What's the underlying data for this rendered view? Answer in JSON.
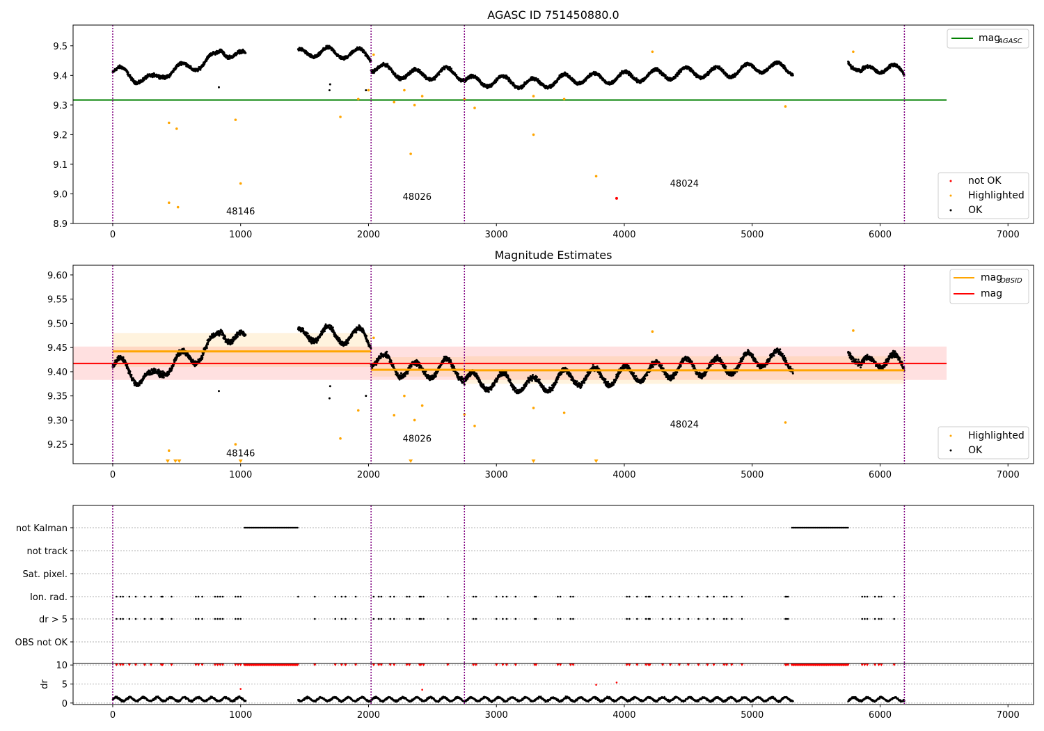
{
  "figure_title": "AGASC ID 751450880.0",
  "colors": {
    "ok": "#000000",
    "highlighted": "#ffa500",
    "not_ok": "#ff0000",
    "agasc_line": "#008000",
    "mag_line": "#ff0000",
    "obsid_line": "#ffa500",
    "obsid_boundary": "#800080",
    "grid": "#b0b0b0"
  },
  "chart_data": [
    {
      "id": "top",
      "type": "scatter",
      "title": "AGASC ID 751450880.0",
      "xlim": [
        -310,
        7200
      ],
      "ylim": [
        8.9,
        9.57
      ],
      "xticks": [
        0,
        1000,
        2000,
        3000,
        4000,
        5000,
        6000,
        7000
      ],
      "yticks": [
        "8.9",
        "9.0",
        "9.1",
        "9.2",
        "9.3",
        "9.4",
        "9.5"
      ],
      "obsid_boundaries": [
        0,
        2020,
        2750,
        6190
      ],
      "obsid_labels": [
        {
          "text": "48146",
          "x": 1000,
          "y": 8.93
        },
        {
          "text": "48026",
          "x": 2380,
          "y": 8.98
        },
        {
          "text": "48024",
          "x": 4470,
          "y": 9.025
        }
      ],
      "mag_agasc": {
        "value": 9.317,
        "x_range": [
          -310,
          6520
        ]
      },
      "ok_series": [
        {
          "x_start": 0,
          "x_end": 1040,
          "points": [
            [
              0,
              9.41
            ],
            [
              100,
              9.41
            ],
            [
              200,
              9.39
            ],
            [
              300,
              9.38
            ],
            [
              400,
              9.41
            ],
            [
              500,
              9.42
            ],
            [
              600,
              9.43
            ],
            [
              700,
              9.44
            ],
            [
              800,
              9.46
            ],
            [
              850,
              9.49
            ],
            [
              900,
              9.48
            ],
            [
              950,
              9.47
            ],
            [
              1040,
              9.46
            ]
          ]
        },
        {
          "x_start": 1450,
          "x_end": 2020,
          "points": [
            [
              1450,
              9.47
            ],
            [
              1550,
              9.48
            ],
            [
              1650,
              9.48
            ],
            [
              1750,
              9.47
            ],
            [
              1850,
              9.48
            ],
            [
              1950,
              9.47
            ],
            [
              2020,
              9.46
            ]
          ]
        },
        {
          "x_start": 2020,
          "x_end": 2750,
          "points": [
            [
              2020,
              9.43
            ],
            [
              2200,
              9.41
            ],
            [
              2400,
              9.4
            ],
            [
              2600,
              9.41
            ],
            [
              2750,
              9.4
            ]
          ]
        },
        {
          "x_start": 2750,
          "x_end": 5320,
          "points": [
            [
              2750,
              9.38
            ],
            [
              3100,
              9.38
            ],
            [
              3300,
              9.37
            ],
            [
              3600,
              9.39
            ],
            [
              3900,
              9.39
            ],
            [
              4200,
              9.4
            ],
            [
              4500,
              9.41
            ],
            [
              4800,
              9.41
            ],
            [
              5100,
              9.43
            ],
            [
              5320,
              9.42
            ]
          ]
        },
        {
          "x_start": 5750,
          "x_end": 6190,
          "points": [
            [
              5750,
              9.46
            ],
            [
              5850,
              9.4
            ],
            [
              5950,
              9.43
            ],
            [
              6100,
              9.42
            ],
            [
              6190,
              9.41
            ]
          ]
        }
      ],
      "ok_outliers": [
        [
          830,
          9.36
        ],
        [
          1700,
          9.37
        ],
        [
          1695,
          9.35
        ],
        [
          1980,
          9.35
        ]
      ],
      "highlighted": [
        [
          440,
          9.24
        ],
        [
          500,
          9.22
        ],
        [
          440,
          8.97
        ],
        [
          510,
          8.955
        ],
        [
          960,
          9.25
        ],
        [
          1000,
          9.035
        ],
        [
          1780,
          9.26
        ],
        [
          1920,
          9.32
        ],
        [
          2000,
          9.35
        ],
        [
          2040,
          9.47
        ],
        [
          2200,
          9.31
        ],
        [
          2280,
          9.35
        ],
        [
          2330,
          9.135
        ],
        [
          2360,
          9.3
        ],
        [
          2420,
          9.33
        ],
        [
          2750,
          9.32
        ],
        [
          2830,
          9.29
        ],
        [
          3290,
          9.2
        ],
        [
          3290,
          9.33
        ],
        [
          3530,
          9.32
        ],
        [
          3780,
          9.06
        ],
        [
          4220,
          9.48
        ],
        [
          5260,
          9.295
        ],
        [
          5790,
          9.48
        ]
      ],
      "not_ok": [
        [
          3940,
          8.985
        ]
      ],
      "legend_lines": [
        {
          "label": "mag",
          "sub": "AGASC"
        }
      ],
      "legend_markers": [
        "not OK",
        "Highlighted",
        "OK"
      ]
    },
    {
      "id": "middle",
      "type": "scatter",
      "title": "Magnitude Estimates",
      "xlim": [
        -310,
        7200
      ],
      "ylim": [
        9.21,
        9.62
      ],
      "xticks": [
        0,
        1000,
        2000,
        3000,
        4000,
        5000,
        6000,
        7000
      ],
      "yticks": [
        "9.25",
        "9.30",
        "9.35",
        "9.40",
        "9.45",
        "9.50",
        "9.55",
        "9.60"
      ],
      "obsid_boundaries": [
        0,
        2020,
        2750,
        6190
      ],
      "obsid_labels": [
        {
          "text": "48146",
          "x": 1000,
          "y": 9.225
        },
        {
          "text": "48026",
          "x": 2380,
          "y": 9.255
        },
        {
          "text": "48024",
          "x": 4470,
          "y": 9.285
        }
      ],
      "mag": {
        "value": 9.417,
        "band": [
          9.383,
          9.452
        ],
        "x_range": [
          -310,
          6520
        ]
      },
      "mag_obsid": [
        {
          "x_range": [
            0,
            2020
          ],
          "value": 9.442,
          "band": [
            9.41,
            9.48
          ]
        },
        {
          "x_range": [
            2020,
            2750
          ],
          "value": 9.404,
          "band": [
            9.39,
            9.43
          ]
        },
        {
          "x_range": [
            2750,
            6190
          ],
          "value": 9.403,
          "band": [
            9.375,
            9.432
          ]
        }
      ],
      "ok_series": [
        {
          "x_start": 0,
          "x_end": 1040,
          "points": [
            [
              0,
              9.41
            ],
            [
              100,
              9.41
            ],
            [
              200,
              9.39
            ],
            [
              300,
              9.38
            ],
            [
              400,
              9.41
            ],
            [
              500,
              9.42
            ],
            [
              600,
              9.43
            ],
            [
              700,
              9.44
            ],
            [
              800,
              9.46
            ],
            [
              850,
              9.49
            ],
            [
              900,
              9.48
            ],
            [
              950,
              9.47
            ],
            [
              1040,
              9.46
            ]
          ]
        },
        {
          "x_start": 1450,
          "x_end": 2020,
          "points": [
            [
              1450,
              9.47
            ],
            [
              1550,
              9.48
            ],
            [
              1650,
              9.48
            ],
            [
              1750,
              9.47
            ],
            [
              1850,
              9.48
            ],
            [
              1950,
              9.47
            ],
            [
              2020,
              9.46
            ]
          ]
        },
        {
          "x_start": 2020,
          "x_end": 2750,
          "points": [
            [
              2020,
              9.43
            ],
            [
              2200,
              9.41
            ],
            [
              2400,
              9.4
            ],
            [
              2600,
              9.41
            ],
            [
              2750,
              9.4
            ]
          ]
        },
        {
          "x_start": 2750,
          "x_end": 5320,
          "points": [
            [
              2750,
              9.38
            ],
            [
              3100,
              9.38
            ],
            [
              3300,
              9.37
            ],
            [
              3600,
              9.39
            ],
            [
              3900,
              9.39
            ],
            [
              4200,
              9.4
            ],
            [
              4500,
              9.41
            ],
            [
              4800,
              9.41
            ],
            [
              5100,
              9.43
            ],
            [
              5320,
              9.42
            ]
          ]
        },
        {
          "x_start": 5750,
          "x_end": 6190,
          "points": [
            [
              5750,
              9.46
            ],
            [
              5850,
              9.4
            ],
            [
              5950,
              9.43
            ],
            [
              6100,
              9.42
            ],
            [
              6190,
              9.41
            ]
          ]
        }
      ],
      "ok_outliers": [
        [
          830,
          9.36
        ],
        [
          1700,
          9.37
        ],
        [
          1695,
          9.345
        ],
        [
          1980,
          9.35
        ]
      ],
      "highlighted": [
        [
          440,
          9.237
        ],
        [
          960,
          9.25
        ],
        [
          1780,
          9.262
        ],
        [
          1920,
          9.32
        ],
        [
          2040,
          9.47
        ],
        [
          2200,
          9.31
        ],
        [
          2280,
          9.35
        ],
        [
          2360,
          9.3
        ],
        [
          2420,
          9.33
        ],
        [
          2750,
          9.312
        ],
        [
          2830,
          9.288
        ],
        [
          3290,
          9.325
        ],
        [
          3530,
          9.315
        ],
        [
          4220,
          9.483
        ],
        [
          5260,
          9.295
        ],
        [
          5790,
          9.485
        ]
      ],
      "highlighted_clipped": [
        430,
        490,
        520,
        1000,
        2330,
        3290,
        3780
      ],
      "legend_lines": [
        {
          "label": "mag",
          "sub": "OBSID"
        },
        {
          "label": "mag",
          "sub": ""
        }
      ],
      "legend_markers": [
        "Highlighted",
        "OK"
      ]
    },
    {
      "id": "flags",
      "type": "scatter",
      "xlim": [
        -310,
        7200
      ],
      "rows": [
        "not Kalman",
        "not track",
        "Sat. pixel.",
        "Ion. rad.",
        "dr > 5",
        "OBS not OK"
      ],
      "obsid_boundaries": [
        0,
        2020,
        2750,
        6190
      ],
      "not_kalman_ranges": [
        [
          1030,
          1450
        ],
        [
          5310,
          5750
        ]
      ],
      "ion_rad_x": [
        30,
        60,
        80,
        130,
        180,
        250,
        300,
        380,
        390,
        460,
        650,
        670,
        700,
        800,
        820,
        840,
        860,
        960,
        980,
        1000,
        1450,
        1580,
        1740,
        1790,
        1820,
        1900,
        2040,
        2080,
        2100,
        2170,
        2200,
        2300,
        2320,
        2400,
        2410,
        2430,
        2620,
        2820,
        2840,
        3000,
        3050,
        3080,
        3150,
        3300,
        3310,
        3480,
        3500,
        3580,
        3600,
        4020,
        4040,
        4100,
        4170,
        4190,
        4200,
        4300,
        4360,
        4430,
        4500,
        4580,
        4650,
        4700,
        4780,
        4800,
        4840,
        4920,
        5260,
        5270,
        5280,
        5860,
        5880,
        5900,
        5960,
        5990,
        6010,
        6110
      ],
      "dr_gt5_x": [
        30,
        60,
        80,
        130,
        180,
        250,
        300,
        380,
        390,
        460,
        650,
        670,
        700,
        800,
        820,
        840,
        860,
        960,
        980,
        1000,
        1580,
        1740,
        1790,
        1820,
        1900,
        2040,
        2080,
        2100,
        2170,
        2200,
        2300,
        2320,
        2400,
        2410,
        2430,
        2620,
        2820,
        2840,
        3000,
        3050,
        3080,
        3150,
        3300,
        3310,
        3480,
        3500,
        3580,
        3600,
        4020,
        4040,
        4100,
        4170,
        4190,
        4200,
        4300,
        4360,
        4430,
        4500,
        4580,
        4650,
        4700,
        4780,
        4800,
        4840,
        4920,
        5260,
        5270,
        5280,
        5860,
        5880,
        5900,
        5960,
        5990,
        6010,
        6110
      ]
    },
    {
      "id": "dr",
      "type": "scatter",
      "xlim": [
        -310,
        7200
      ],
      "ylim": [
        -0.4,
        10.4
      ],
      "ylabel": "dr",
      "yticks": [
        "0",
        "5",
        "10"
      ],
      "xticks": [
        0,
        1000,
        2000,
        3000,
        4000,
        5000,
        6000,
        7000
      ],
      "obsid_boundaries": [
        0,
        2020,
        2750,
        6190
      ],
      "segments": [
        [
          0,
          1040
        ],
        [
          1450,
          5320
        ],
        [
          5750,
          6190
        ]
      ],
      "typical_dr": 1.0,
      "clipped_x": [
        30,
        60,
        80,
        130,
        180,
        250,
        300,
        380,
        390,
        460,
        650,
        670,
        700,
        800,
        820,
        840,
        860,
        960,
        980,
        1000,
        1580,
        1740,
        1790,
        1820,
        1900,
        2040,
        2080,
        2100,
        2170,
        2200,
        2300,
        2320,
        2400,
        2410,
        2430,
        2620,
        2820,
        2840,
        3000,
        3050,
        3080,
        3150,
        3300,
        3310,
        3480,
        3500,
        3580,
        3600,
        4020,
        4040,
        4100,
        4170,
        4190,
        4200,
        4300,
        4360,
        4430,
        4500,
        4580,
        4650,
        4700,
        4780,
        4800,
        4840,
        4920,
        5260,
        5270,
        5280,
        5860,
        5880,
        5900,
        5960,
        5990,
        6010,
        6110
      ],
      "clipped_ranges": [
        [
          1030,
          1450
        ],
        [
          5310,
          5750
        ]
      ],
      "red_points": [
        [
          1000,
          3.7
        ],
        [
          2420,
          3.5
        ],
        [
          3780,
          4.8
        ],
        [
          3940,
          5.4
        ]
      ]
    }
  ]
}
